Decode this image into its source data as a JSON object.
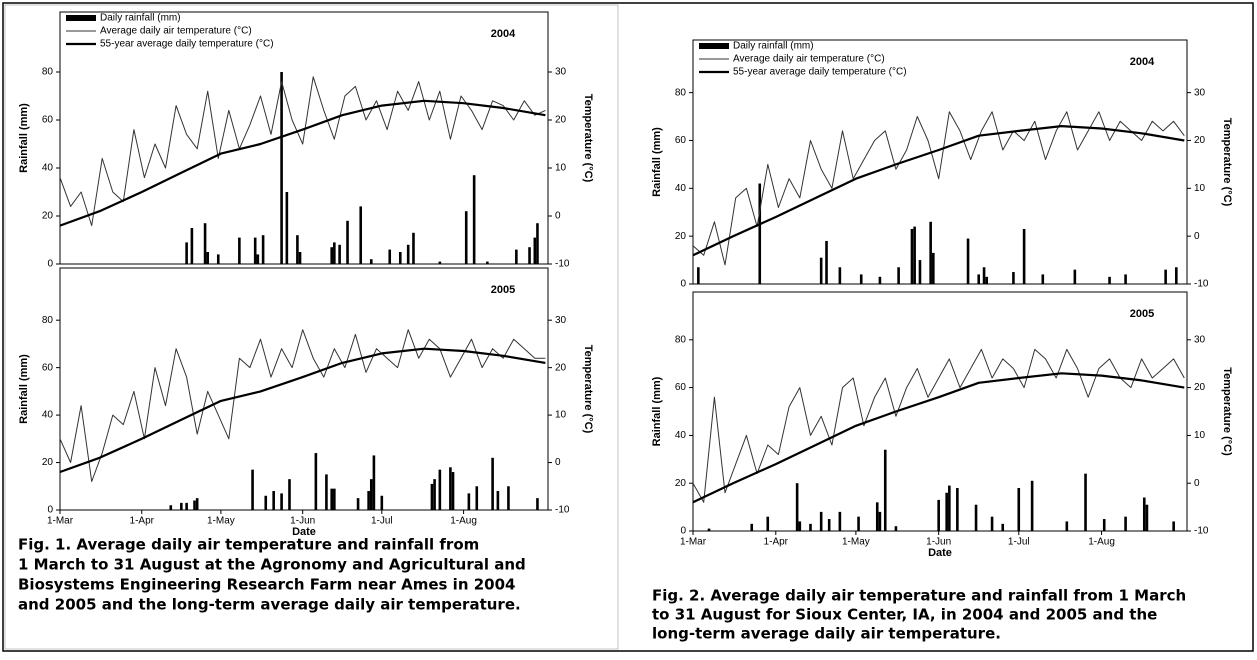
{
  "chart_data": [
    {
      "type": "combo",
      "panel_label": "2004",
      "ylabel": "Rainfall (mm)",
      "y2label": "Temperature (°C)",
      "xlim": [
        0,
        185
      ],
      "ylim": [
        0,
        105
      ],
      "yticks": [
        0,
        20,
        40,
        60,
        80
      ],
      "y2lim": [
        -10,
        42.5
      ],
      "y2ticks": [
        -10,
        0,
        10,
        20,
        30
      ],
      "series": [
        {
          "name": "Daily rainfall (mm)",
          "kind": "bar",
          "color": "#000000",
          "x": [
            48,
            50,
            55,
            56,
            60,
            68,
            74,
            75,
            77,
            84,
            86,
            90,
            91,
            103,
            104,
            106,
            109,
            114,
            118,
            125,
            129,
            132,
            134,
            144,
            154,
            157,
            162,
            173,
            178,
            180,
            181
          ],
          "values": [
            9,
            15,
            17,
            5,
            4,
            11,
            11,
            4,
            12,
            80,
            30,
            12,
            5,
            7,
            9,
            8,
            18,
            24,
            2,
            6,
            5,
            8,
            13,
            1,
            22,
            37,
            1,
            6,
            7,
            11,
            17
          ]
        },
        {
          "name": "Average daily air temperature (°C)",
          "kind": "line",
          "axis": "y2",
          "color": "#333333",
          "x": [
            0,
            4,
            8,
            12,
            16,
            20,
            24,
            28,
            32,
            36,
            40,
            44,
            48,
            52,
            56,
            60,
            64,
            68,
            72,
            76,
            80,
            84,
            88,
            92,
            96,
            100,
            104,
            108,
            112,
            116,
            120,
            124,
            128,
            132,
            136,
            140,
            144,
            148,
            152,
            156,
            160,
            164,
            168,
            172,
            176,
            180,
            184
          ],
          "values": [
            8,
            2,
            5,
            -2,
            12,
            5,
            3,
            18,
            8,
            15,
            10,
            23,
            17,
            14,
            26,
            12,
            22,
            14,
            19,
            25,
            17,
            28,
            20,
            15,
            29,
            22,
            16,
            25,
            27,
            20,
            24,
            18,
            26,
            22,
            28,
            20,
            26,
            16,
            25,
            22,
            18,
            24,
            23,
            20,
            24,
            21,
            22
          ]
        },
        {
          "name": "55-year average daily temperature (°C)",
          "kind": "line",
          "axis": "y2",
          "color": "#000000",
          "x": [
            0,
            15,
            31,
            46,
            61,
            76,
            92,
            107,
            122,
            138,
            153,
            168,
            184
          ],
          "values": [
            -2,
            1,
            5,
            9,
            13,
            15,
            18,
            21,
            23,
            24,
            23.5,
            22.5,
            21
          ]
        }
      ]
    },
    {
      "type": "combo",
      "panel_label": "2005",
      "ylabel": "Rainfall (mm)",
      "y2label": "Temperature (°C)",
      "xlabel": "Date",
      "xlim": [
        0,
        185
      ],
      "xticks": [
        {
          "value": 0,
          "label": "1-Mar"
        },
        {
          "value": 31,
          "label": "1-Apr"
        },
        {
          "value": 61,
          "label": "1-May"
        },
        {
          "value": 92,
          "label": "1-Jun"
        },
        {
          "value": 122,
          "label": "1-Jul"
        },
        {
          "value": 153,
          "label": "1-Aug"
        }
      ],
      "ylim": [
        0,
        102
      ],
      "yticks": [
        0,
        20,
        40,
        60,
        80
      ],
      "y2lim": [
        -10,
        41
      ],
      "y2ticks": [
        -10,
        0,
        10,
        20,
        30
      ],
      "series": [
        {
          "kind": "bar",
          "color": "#000000",
          "x": [
            42,
            46,
            48,
            51,
            52,
            73,
            78,
            81,
            84,
            87,
            97,
            101,
            103,
            104,
            113,
            117,
            118,
            119,
            122,
            141,
            142,
            144,
            148,
            149,
            155,
            158,
            164,
            166,
            170,
            181
          ],
          "values": [
            2,
            3,
            3,
            4,
            5,
            17,
            6,
            8,
            7,
            13,
            24,
            15,
            9,
            9,
            5,
            8,
            13,
            23,
            6,
            11,
            13,
            17,
            18,
            16,
            7,
            10,
            22,
            8,
            10,
            5
          ]
        },
        {
          "kind": "line",
          "axis": "y2",
          "color": "#333333",
          "x": [
            0,
            4,
            8,
            12,
            16,
            20,
            24,
            28,
            32,
            36,
            40,
            44,
            48,
            52,
            56,
            60,
            64,
            68,
            72,
            76,
            80,
            84,
            88,
            92,
            96,
            100,
            104,
            108,
            112,
            116,
            120,
            124,
            128,
            132,
            136,
            140,
            144,
            148,
            152,
            156,
            160,
            164,
            168,
            172,
            176,
            180,
            184
          ],
          "values": [
            5,
            0,
            12,
            -4,
            2,
            10,
            8,
            15,
            5,
            20,
            12,
            24,
            18,
            6,
            15,
            10,
            5,
            22,
            20,
            26,
            18,
            24,
            20,
            28,
            22,
            18,
            24,
            20,
            27,
            19,
            24,
            22,
            20,
            28,
            22,
            26,
            24,
            18,
            22,
            26,
            20,
            24,
            22,
            26,
            24,
            22,
            22
          ]
        },
        {
          "kind": "line",
          "axis": "y2",
          "color": "#000000",
          "x": [
            0,
            15,
            31,
            46,
            61,
            76,
            92,
            107,
            122,
            138,
            153,
            168,
            184
          ],
          "values": [
            -2,
            1,
            5,
            9,
            13,
            15,
            18,
            21,
            23,
            24,
            23.5,
            22.5,
            21
          ]
        }
      ]
    },
    {
      "type": "combo",
      "panel_label": "2004",
      "ylabel": "Rainfall (mm)",
      "y2label": "Temperature (°C)",
      "xlim": [
        0,
        185
      ],
      "ylim": [
        0,
        102
      ],
      "yticks": [
        0,
        20,
        40,
        60,
        80
      ],
      "y2lim": [
        -10,
        41
      ],
      "y2ticks": [
        -10,
        0,
        10,
        20,
        30
      ],
      "series": [
        {
          "name": "Daily rainfall (mm)",
          "kind": "bar",
          "color": "#000000",
          "x": [
            2,
            25,
            48,
            50,
            55,
            63,
            70,
            77,
            82,
            83,
            85,
            89,
            90,
            103,
            107,
            109,
            110,
            120,
            124,
            131,
            143,
            156,
            162,
            177,
            181
          ],
          "values": [
            7,
            42,
            11,
            18,
            7,
            4,
            3,
            7,
            23,
            24,
            10,
            26,
            13,
            19,
            4,
            7,
            3,
            5,
            23,
            4,
            6,
            3,
            4,
            6,
            7
          ]
        },
        {
          "name": "Average daily air temperature (°C)",
          "kind": "line",
          "axis": "y2",
          "color": "#333333",
          "x": [
            0,
            4,
            8,
            12,
            16,
            20,
            24,
            28,
            32,
            36,
            40,
            44,
            48,
            52,
            56,
            60,
            64,
            68,
            72,
            76,
            80,
            84,
            88,
            92,
            96,
            100,
            104,
            108,
            112,
            116,
            120,
            124,
            128,
            132,
            136,
            140,
            144,
            148,
            152,
            156,
            160,
            164,
            168,
            172,
            176,
            180,
            184
          ],
          "values": [
            -2,
            -4,
            3,
            -6,
            8,
            10,
            2,
            15,
            6,
            12,
            8,
            20,
            14,
            10,
            22,
            12,
            16,
            20,
            22,
            14,
            18,
            25,
            20,
            12,
            26,
            22,
            16,
            22,
            26,
            18,
            22,
            20,
            24,
            16,
            22,
            26,
            18,
            22,
            26,
            20,
            24,
            22,
            20,
            24,
            22,
            24,
            21
          ]
        },
        {
          "name": "55-year average daily temperature (°C)",
          "kind": "line",
          "axis": "y2",
          "color": "#000000",
          "x": [
            0,
            15,
            31,
            46,
            61,
            76,
            92,
            107,
            122,
            138,
            153,
            168,
            184
          ],
          "values": [
            -4,
            0,
            4,
            8,
            12,
            15,
            18,
            21,
            22,
            23,
            22.5,
            21.5,
            20
          ]
        }
      ]
    },
    {
      "type": "combo",
      "panel_label": "2005",
      "ylabel": "Rainfall (mm)",
      "y2label": "Temperature (°C)",
      "xlabel": "Date",
      "xlim": [
        0,
        185
      ],
      "xticks": [
        {
          "value": 0,
          "label": "1-Mar"
        },
        {
          "value": 31,
          "label": "1-Apr"
        },
        {
          "value": 61,
          "label": "1-May"
        },
        {
          "value": 92,
          "label": "1-Jun"
        },
        {
          "value": 122,
          "label": "1-Jul"
        },
        {
          "value": 153,
          "label": "1-Aug"
        }
      ],
      "ylim": [
        0,
        100
      ],
      "yticks": [
        0,
        20,
        40,
        60,
        80
      ],
      "y2lim": [
        -10,
        40
      ],
      "y2ticks": [
        -10,
        0,
        10,
        20,
        30
      ],
      "series": [
        {
          "kind": "bar",
          "color": "#000000",
          "x": [
            6,
            22,
            28,
            39,
            40,
            44,
            48,
            51,
            55,
            62,
            69,
            70,
            72,
            76,
            92,
            95,
            96,
            99,
            106,
            112,
            116,
            122,
            127,
            140,
            147,
            154,
            162,
            169,
            170,
            180
          ],
          "values": [
            1,
            3,
            6,
            20,
            4,
            3,
            8,
            5,
            8,
            6,
            12,
            8,
            34,
            2,
            13,
            16,
            19,
            18,
            11,
            6,
            3,
            18,
            21,
            4,
            24,
            5,
            6,
            14,
            11,
            4
          ]
        },
        {
          "kind": "line",
          "axis": "y2",
          "color": "#333333",
          "x": [
            0,
            4,
            8,
            12,
            16,
            20,
            24,
            28,
            32,
            36,
            40,
            44,
            48,
            52,
            56,
            60,
            64,
            68,
            72,
            76,
            80,
            84,
            88,
            92,
            96,
            100,
            104,
            108,
            112,
            116,
            120,
            124,
            128,
            132,
            136,
            140,
            144,
            148,
            152,
            156,
            160,
            164,
            168,
            172,
            176,
            180,
            184
          ],
          "values": [
            0,
            -4,
            18,
            -2,
            4,
            10,
            2,
            8,
            6,
            16,
            20,
            10,
            14,
            8,
            20,
            22,
            12,
            18,
            22,
            14,
            20,
            24,
            18,
            22,
            26,
            20,
            24,
            28,
            22,
            26,
            24,
            20,
            28,
            26,
            22,
            28,
            24,
            18,
            24,
            26,
            22,
            20,
            26,
            22,
            24,
            26,
            22
          ]
        },
        {
          "kind": "line",
          "axis": "y2",
          "color": "#000000",
          "x": [
            0,
            15,
            31,
            46,
            61,
            76,
            92,
            107,
            122,
            138,
            153,
            168,
            184
          ],
          "values": [
            -4,
            0,
            4,
            8,
            12,
            15,
            18,
            21,
            22,
            23,
            22.5,
            21.5,
            20
          ]
        }
      ]
    }
  ],
  "captions": [
    [
      "Fig. 1. Average daily air temperature and rainfall from",
      "1 March to 31 August at the Agronomy and Agricultural and",
      "Biosystems Engineering Research Farm near Ames in 2004",
      "and 2005 and the long-term average daily air temperature."
    ],
    [
      "Fig. 2. Average daily air temperature and rainfall from 1 March",
      "to 31 August for Sioux Center, IA, in 2004 and 2005 and the",
      "long-term average daily air temperature."
    ]
  ]
}
